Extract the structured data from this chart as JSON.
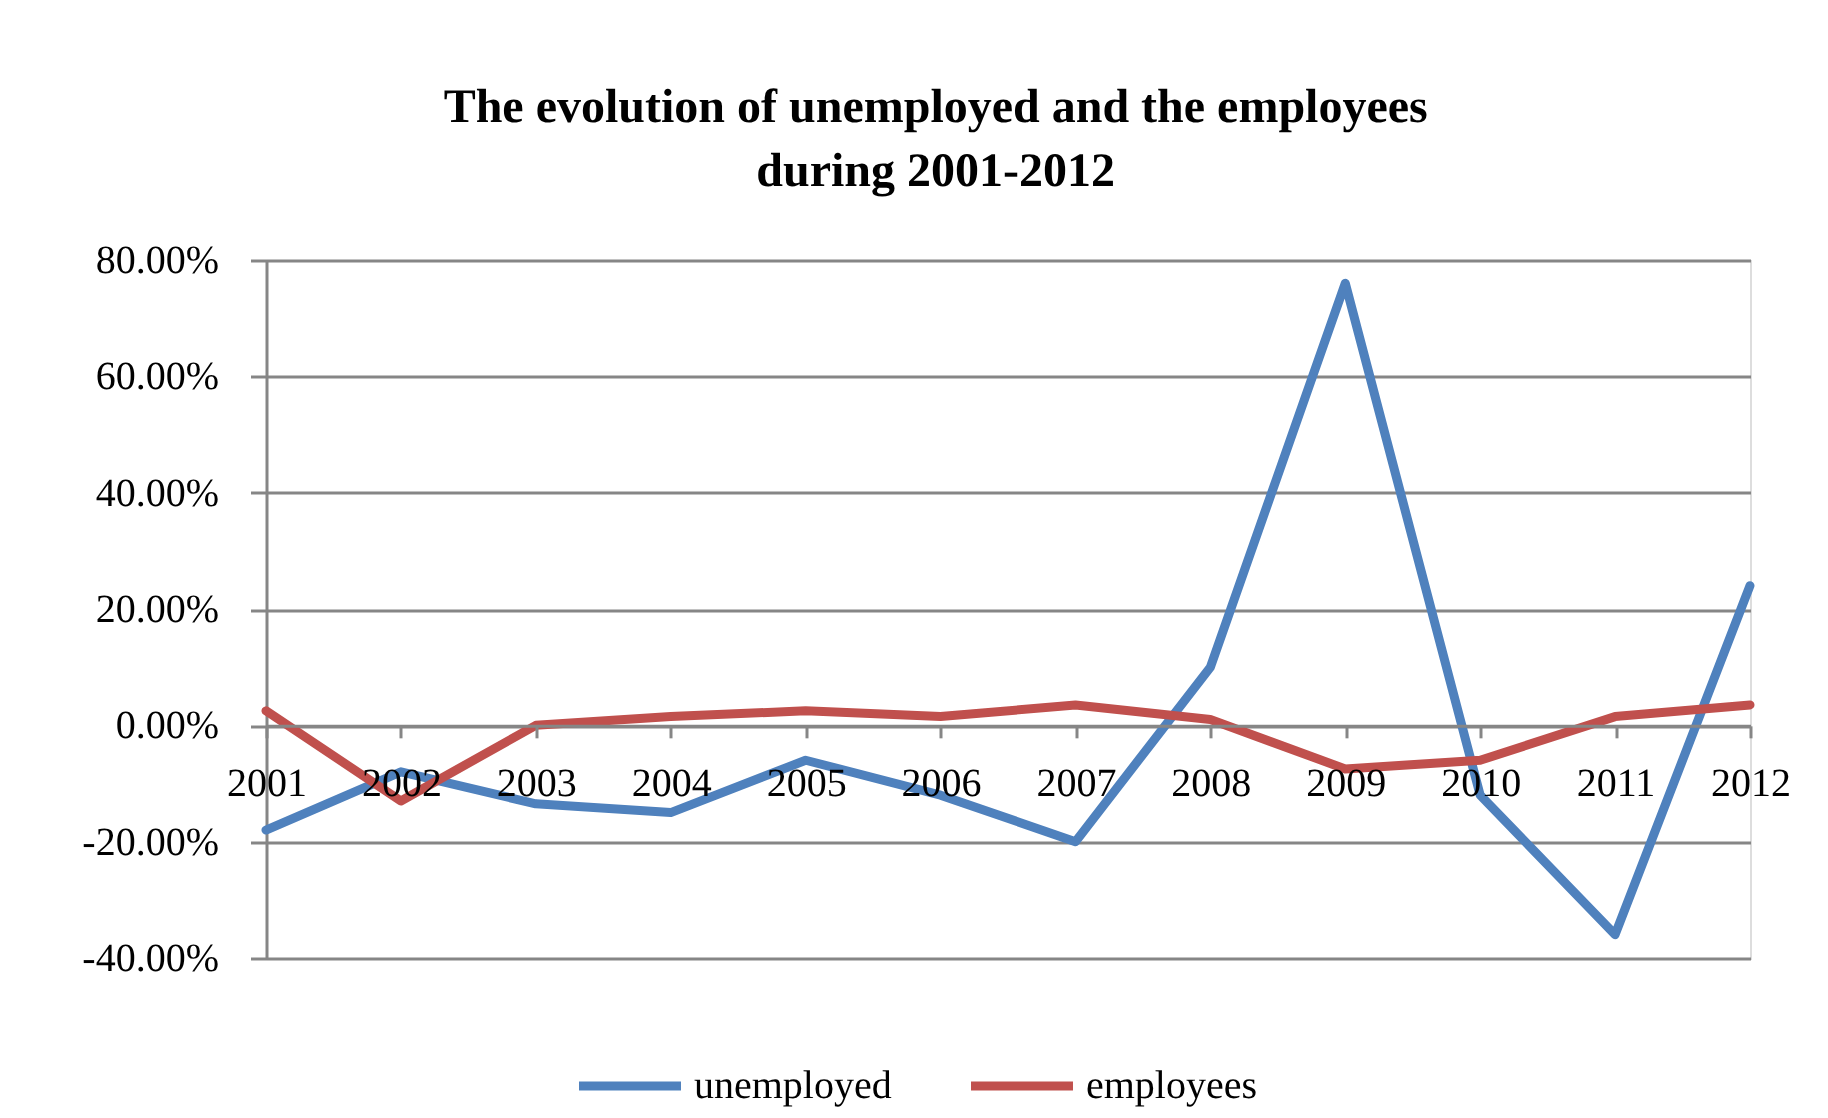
{
  "chart_data": {
    "type": "line",
    "title": "The evolution of unemployed and the employees during 2001-2012",
    "categories": [
      "2001",
      "2002",
      "2003",
      "2004",
      "2005",
      "2006",
      "2007",
      "2008",
      "2009",
      "2010",
      "2011",
      "2012"
    ],
    "series": [
      {
        "name": "unemployed",
        "color": "#4f81bd",
        "values": [
          -18,
          -8,
          -13.5,
          -15,
          -6,
          -12,
          -20,
          10,
          76,
          -12,
          -36,
          24
        ]
      },
      {
        "name": "employees",
        "color": "#c0504d",
        "values": [
          2.5,
          -13,
          0,
          1.5,
          2.5,
          1.5,
          3.5,
          1,
          -7.5,
          -6,
          1.5,
          3.5
        ]
      }
    ],
    "ylim": [
      -40,
      80
    ],
    "yticks": [
      {
        "value": -40,
        "label": "-40.00%"
      },
      {
        "value": -20,
        "label": "-20.00%"
      },
      {
        "value": 0,
        "label": "0.00%"
      },
      {
        "value": 20,
        "label": "20.00%"
      },
      {
        "value": 40,
        "label": "40.00%"
      },
      {
        "value": 60,
        "label": "60.00%"
      },
      {
        "value": 80,
        "label": "80.00%"
      }
    ],
    "grid": "y",
    "legend": "bottom",
    "marker": "none",
    "line_style": "solid"
  }
}
